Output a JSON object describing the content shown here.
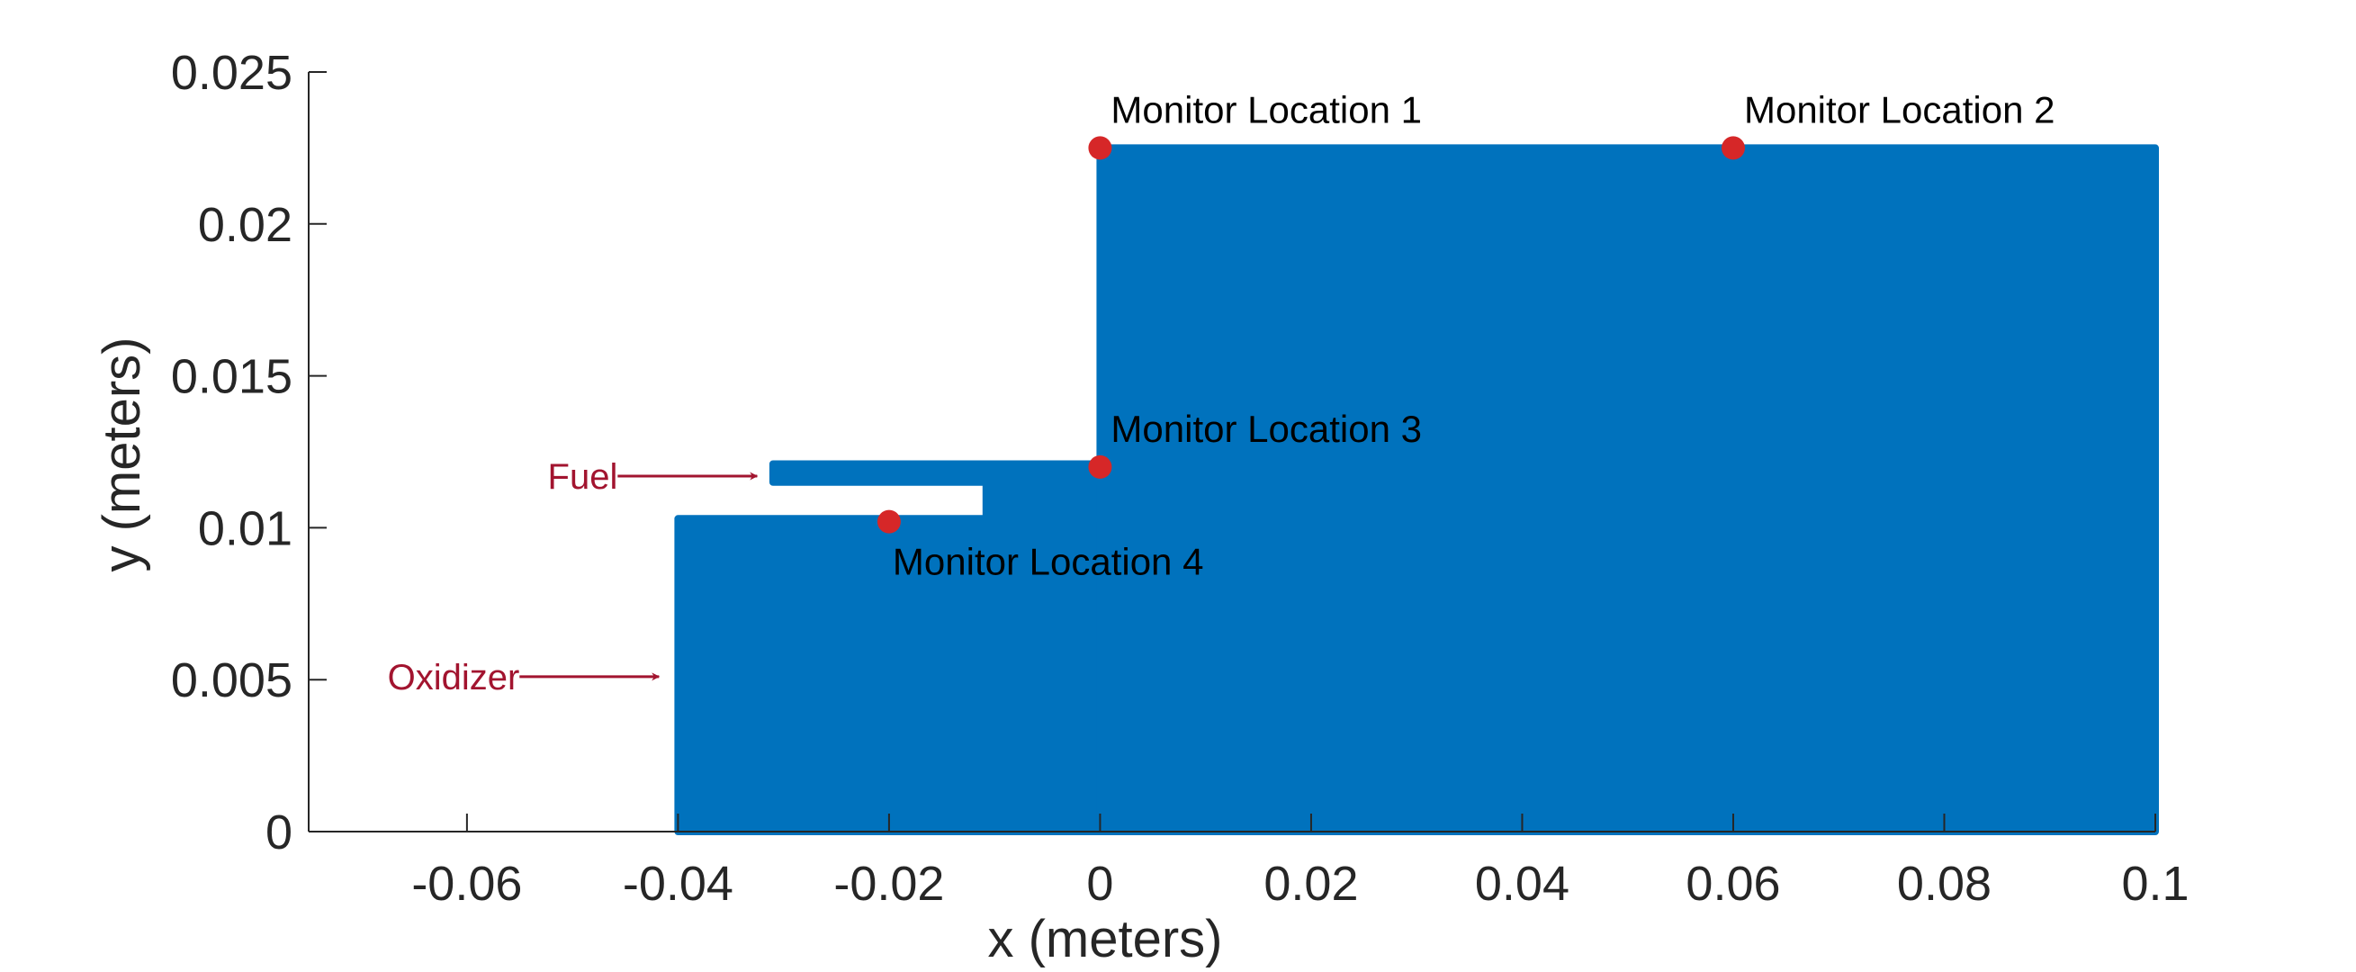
{
  "chart_data": {
    "type": "scatter",
    "title": "",
    "xlabel": "x (meters)",
    "ylabel": "y (meters)",
    "xlim": [
      -0.075,
      0.1
    ],
    "ylim": [
      0,
      0.025
    ],
    "xticks": [
      -0.06,
      -0.04,
      -0.02,
      0,
      0.02,
      0.04,
      0.06,
      0.08,
      0.1
    ],
    "xtick_labels": [
      "-0.06",
      "-0.04",
      "-0.02",
      "0",
      "0.02",
      "0.04",
      "0.06",
      "0.08",
      "0.1"
    ],
    "yticks": [
      0,
      0.005,
      0.01,
      0.015,
      0.02,
      0.025
    ],
    "ytick_labels": [
      "0",
      "0.005",
      "0.01",
      "0.015",
      "0.02",
      "0.025"
    ],
    "grid": false,
    "mesh_color": "#0072BD",
    "marker_color": "#D62728",
    "annotation_color": "#A2142F",
    "mesh_regions": [
      {
        "x": [
          -0.04,
          0
        ],
        "y": [
          0,
          0.0103
        ]
      },
      {
        "x": [
          -0.0108,
          0
        ],
        "y": [
          0.0103,
          0.0115
        ]
      },
      {
        "x": [
          -0.031,
          0
        ],
        "y": [
          0.0115,
          0.0121
        ]
      },
      {
        "x": [
          0,
          0.1
        ],
        "y": [
          0,
          0.0225
        ]
      }
    ],
    "monitor_points": [
      {
        "label": "Monitor Location 1",
        "x": 0,
        "y": 0.0225,
        "label_position": "above-right"
      },
      {
        "label": "Monitor Location 2",
        "x": 0.06,
        "y": 0.0225,
        "label_position": "above-right"
      },
      {
        "label": "Monitor Location 3",
        "x": 0,
        "y": 0.012,
        "label_position": "above-right"
      },
      {
        "label": "Monitor Location 4",
        "x": -0.02,
        "y": 0.0102,
        "label_position": "below"
      }
    ],
    "annotations": [
      {
        "text": "Fuel",
        "arrow_to": [
          -0.0325,
          0.0117
        ]
      },
      {
        "text": "Oxidizer",
        "arrow_to": [
          -0.0418,
          0.0051
        ]
      }
    ]
  }
}
